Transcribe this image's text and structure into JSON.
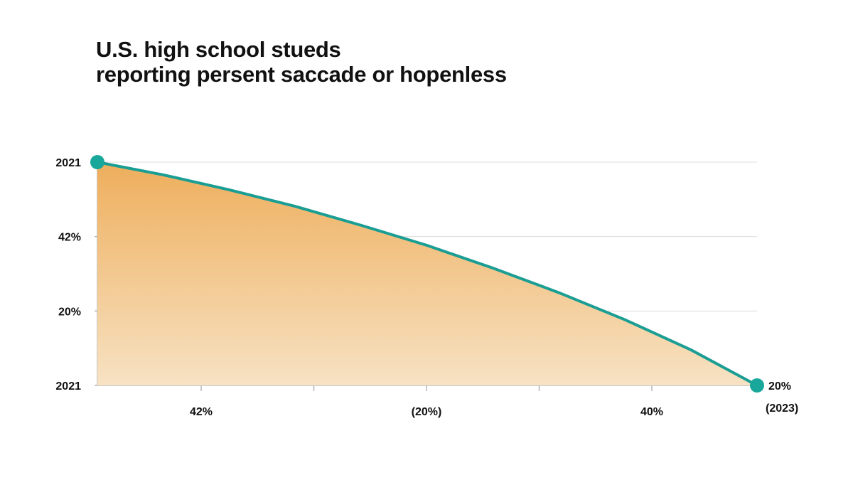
{
  "chart_data": {
    "type": "area",
    "title": "U.S. high school stueds",
    "subtitle": "reporting persent saccade or hopenless",
    "xlabel": "",
    "ylabel": "",
    "y_tick_labels": [
      "2021",
      "42%",
      "20%",
      "2021"
    ],
    "x_tick_labels": [
      "42%",
      "(20%)",
      "40%"
    ],
    "end_label": "20%",
    "end_label_sub": "(2023)",
    "grid": true,
    "series": [
      {
        "x": [
          0,
          0.1,
          0.2,
          0.3,
          0.4,
          0.5,
          0.6,
          0.7,
          0.8,
          0.9,
          1.0
        ],
        "values": [
          1.0,
          0.943,
          0.876,
          0.802,
          0.717,
          0.627,
          0.525,
          0.415,
          0.294,
          0.159,
          0.0
        ]
      }
    ],
    "colors": {
      "line": "#1a9e94",
      "marker": "#1aa79b",
      "fill_top": "#eeae5c",
      "fill_bottom": "#f7e2c3",
      "grid": "#dcdcdc",
      "axis": "#b5b5b5"
    }
  }
}
